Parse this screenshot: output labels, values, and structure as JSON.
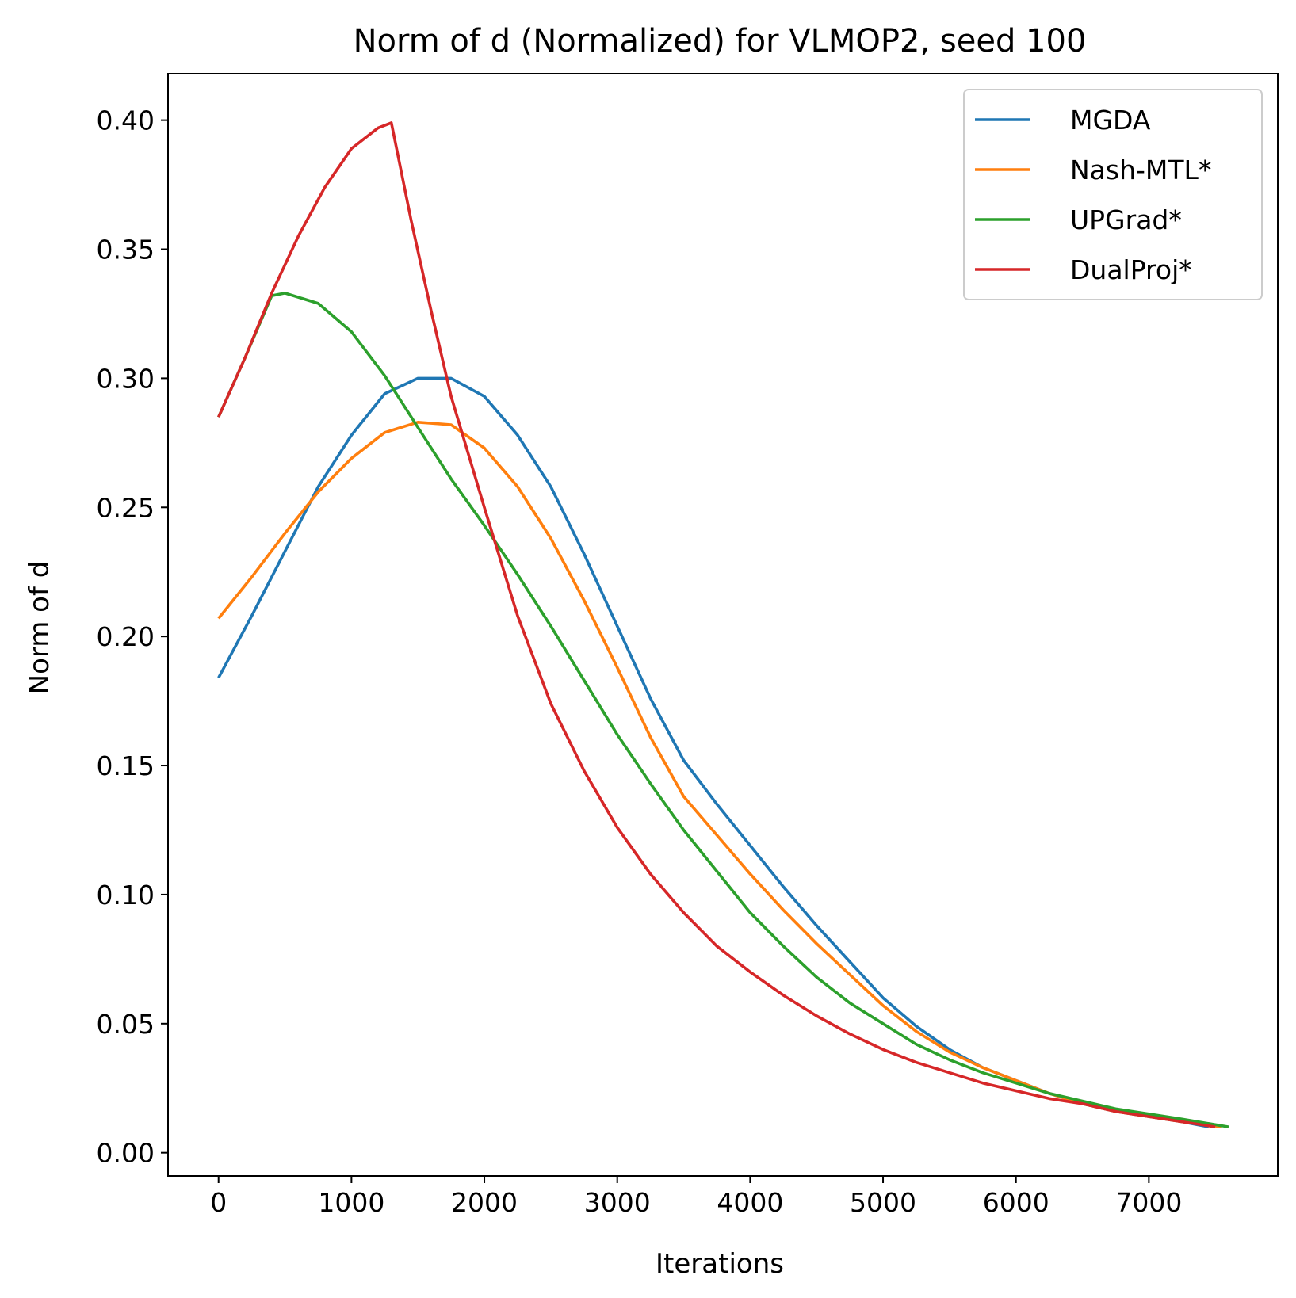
{
  "chart_data": {
    "type": "line",
    "title": "Norm of d (Normalized) for VLMOP2, seed 100",
    "xlabel": "Iterations",
    "ylabel": "Norm of d",
    "xlim": [
      -380,
      7970
    ],
    "ylim": [
      -0.009,
      0.418
    ],
    "xticks": [
      0,
      1000,
      2000,
      3000,
      4000,
      5000,
      6000,
      7000
    ],
    "xtick_labels": [
      "0",
      "1000",
      "2000",
      "3000",
      "4000",
      "5000",
      "6000",
      "7000"
    ],
    "yticks": [
      0.0,
      0.05,
      0.1,
      0.15,
      0.2,
      0.25,
      0.3,
      0.35,
      0.4
    ],
    "ytick_labels": [
      "0.00",
      "0.05",
      "0.10",
      "0.15",
      "0.20",
      "0.25",
      "0.30",
      "0.35",
      "0.40"
    ],
    "grid": false,
    "legend_position": "top-right",
    "series": [
      {
        "name": "MGDA",
        "color": "#1f77b4",
        "x": [
          0,
          250,
          500,
          750,
          1000,
          1250,
          1500,
          1750,
          2000,
          2250,
          2500,
          2750,
          3000,
          3250,
          3500,
          3750,
          4000,
          4250,
          4500,
          4750,
          5000,
          5250,
          5500,
          5750,
          6000,
          6250,
          6500,
          6750,
          7000,
          7250,
          7450
        ],
        "y": [
          0.184,
          0.208,
          0.233,
          0.258,
          0.278,
          0.294,
          0.3,
          0.3,
          0.293,
          0.278,
          0.258,
          0.232,
          0.204,
          0.176,
          0.152,
          0.135,
          0.119,
          0.103,
          0.088,
          0.074,
          0.06,
          0.049,
          0.04,
          0.033,
          0.028,
          0.023,
          0.019,
          0.016,
          0.014,
          0.012,
          0.01
        ]
      },
      {
        "name": "Nash-MTL*",
        "color": "#ff7f0e",
        "x": [
          0,
          250,
          500,
          750,
          1000,
          1250,
          1500,
          1750,
          2000,
          2250,
          2500,
          2750,
          3000,
          3250,
          3500,
          3750,
          4000,
          4250,
          4500,
          4750,
          5000,
          5250,
          5500,
          5750,
          6000,
          6250,
          6500,
          6750,
          7000,
          7250,
          7550
        ],
        "y": [
          0.207,
          0.223,
          0.24,
          0.256,
          0.269,
          0.279,
          0.283,
          0.282,
          0.273,
          0.258,
          0.238,
          0.214,
          0.188,
          0.161,
          0.138,
          0.123,
          0.108,
          0.094,
          0.081,
          0.069,
          0.057,
          0.047,
          0.039,
          0.033,
          0.028,
          0.023,
          0.019,
          0.016,
          0.014,
          0.012,
          0.01
        ]
      },
      {
        "name": "UPGrad*",
        "color": "#2ca02c",
        "x": [
          0,
          200,
          400,
          500,
          750,
          1000,
          1250,
          1500,
          1750,
          2000,
          2250,
          2500,
          2750,
          3000,
          3250,
          3500,
          3750,
          4000,
          4250,
          4500,
          4750,
          5000,
          5250,
          5500,
          5750,
          6000,
          6250,
          6500,
          6750,
          7000,
          7250,
          7600
        ],
        "y": [
          0.285,
          0.308,
          0.332,
          0.333,
          0.329,
          0.318,
          0.301,
          0.281,
          0.261,
          0.243,
          0.224,
          0.204,
          0.183,
          0.162,
          0.143,
          0.125,
          0.109,
          0.093,
          0.08,
          0.068,
          0.058,
          0.05,
          0.042,
          0.036,
          0.031,
          0.027,
          0.023,
          0.02,
          0.017,
          0.015,
          0.013,
          0.01
        ]
      },
      {
        "name": "DualProj*",
        "color": "#d62728",
        "x": [
          0,
          200,
          400,
          600,
          800,
          1000,
          1200,
          1300,
          1450,
          1600,
          1750,
          2000,
          2250,
          2500,
          2750,
          3000,
          3250,
          3500,
          3750,
          4000,
          4250,
          4500,
          4750,
          5000,
          5250,
          5500,
          5750,
          6000,
          6250,
          6500,
          6750,
          7000,
          7250,
          7500
        ],
        "y": [
          0.285,
          0.308,
          0.333,
          0.355,
          0.374,
          0.389,
          0.397,
          0.399,
          0.361,
          0.326,
          0.293,
          0.25,
          0.208,
          0.174,
          0.148,
          0.126,
          0.108,
          0.093,
          0.08,
          0.07,
          0.061,
          0.053,
          0.046,
          0.04,
          0.035,
          0.031,
          0.027,
          0.024,
          0.021,
          0.019,
          0.016,
          0.014,
          0.012,
          0.01
        ]
      }
    ]
  }
}
